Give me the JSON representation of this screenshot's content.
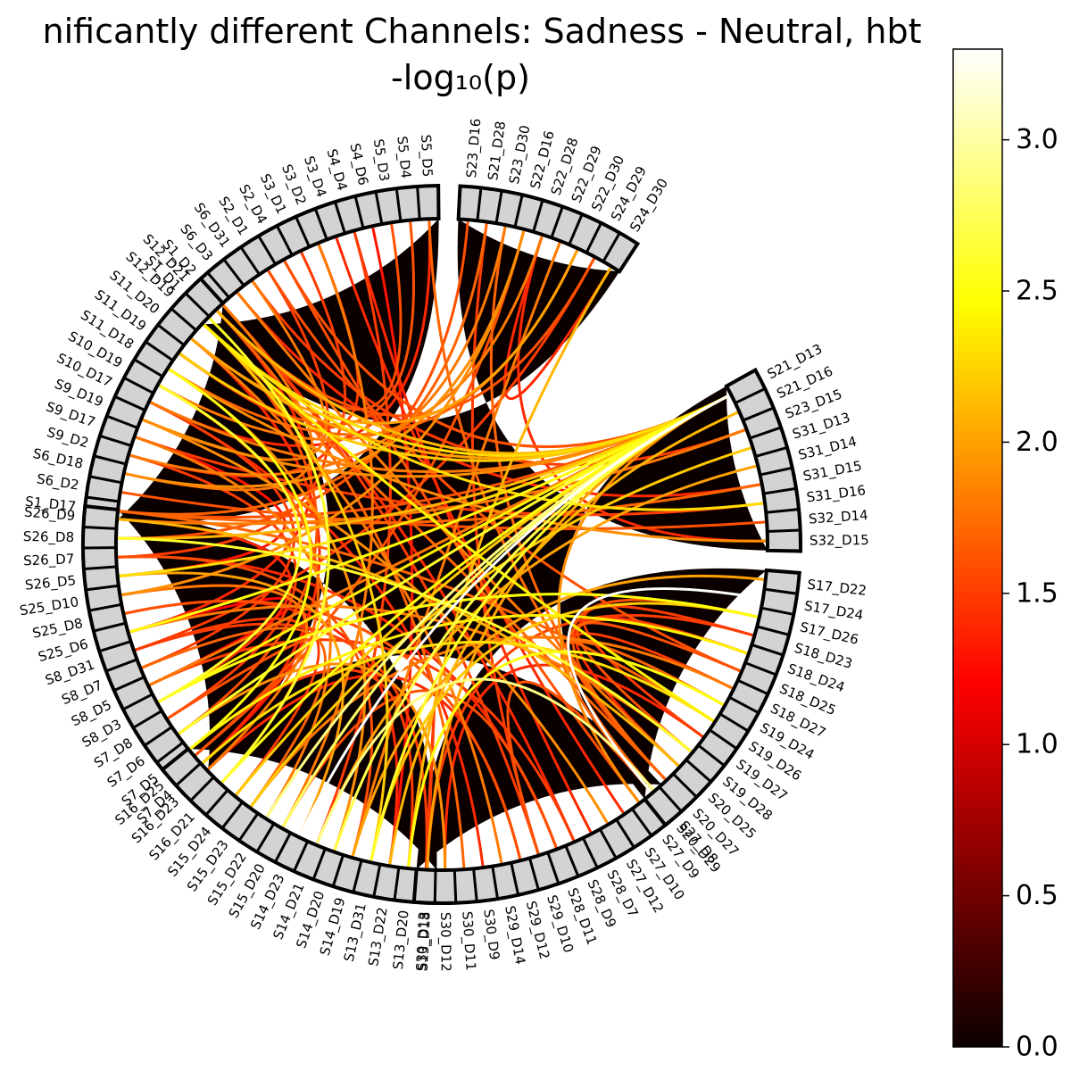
{
  "chart_data": {
    "type": "chord",
    "title": "nificantly different Channels: Sadness - Neutral, hbt",
    "subtitle": "-log₁₀(p)",
    "colormap": "hot",
    "colorbar": {
      "min": 0.0,
      "max": 3.3,
      "ticks": [
        "0.0",
        "0.5",
        "1.0",
        "1.5",
        "2.0",
        "2.5",
        "3.0"
      ]
    },
    "sector_color": "#d3d3d3",
    "background_color": "#0b0000",
    "channels": [
      "S1_D1",
      "S1_D2",
      "S6_D3",
      "S6_D31",
      "S2_D1",
      "S2_D4",
      "S3_D1",
      "S3_D2",
      "S3_D4",
      "S4_D4",
      "S4_D6",
      "S5_D3",
      "S5_D4",
      "S5_D5",
      "S1_D17",
      "S6_D2",
      "S6_D18",
      "S9_D2",
      "S9_D17",
      "S9_D19",
      "S10_D17",
      "S10_D19",
      "S11_D18",
      "S11_D19",
      "S11_D20",
      "S12_D19",
      "S12_D21",
      "S7_D4",
      "S7_D5",
      "S7_D6",
      "S7_D8",
      "S8_D3",
      "S8_D5",
      "S8_D7",
      "S8_D31",
      "S25_D6",
      "S25_D8",
      "S25_D10",
      "S26_D5",
      "S26_D7",
      "S26_D8",
      "S26_D9",
      "S13_D18",
      "S13_D20",
      "S13_D22",
      "S13_D31",
      "S14_D19",
      "S14_D20",
      "S14_D21",
      "S14_D23",
      "S15_D20",
      "S15_D22",
      "S15_D23",
      "S15_D24",
      "S16_D21",
      "S16_D23",
      "S16_D25",
      "S27_D8",
      "S27_D9",
      "S27_D10",
      "S27_D12",
      "S28_D7",
      "S28_D9",
      "S28_D11",
      "S29_D10",
      "S29_D12",
      "S29_D14",
      "S30_D9",
      "S30_D11",
      "S30_D12",
      "S30_D13",
      "S17_D22",
      "S17_D24",
      "S17_D26",
      "S18_D23",
      "S18_D24",
      "S18_D25",
      "S18_D27",
      "S19_D24",
      "S19_D26",
      "S19_D27",
      "S19_D28",
      "S20_D25",
      "S20_D27",
      "S20_D29",
      "S21_D13",
      "S21_D16",
      "S23_D15",
      "S31_D13",
      "S31_D14",
      "S31_D15",
      "S31_D16",
      "S32_D14",
      "S32_D15",
      "S23_D16",
      "S21_D28",
      "S23_D30",
      "S22_D16",
      "S22_D28",
      "S22_D29",
      "S22_D30",
      "S24_D29",
      "S24_D30"
    ],
    "groups": [
      {
        "channels": [
          "S1_D1",
          "S1_D2",
          "S6_D3",
          "S6_D31",
          "S2_D1",
          "S2_D4",
          "S3_D1",
          "S3_D2",
          "S3_D4",
          "S4_D4",
          "S4_D6",
          "S5_D3",
          "S5_D4",
          "S5_D5"
        ]
      },
      {
        "channels": [
          "S1_D17",
          "S6_D2",
          "S6_D18",
          "S9_D2",
          "S9_D17",
          "S9_D19",
          "S10_D17",
          "S10_D19",
          "S11_D18",
          "S11_D19",
          "S11_D20",
          "S12_D19",
          "S12_D21"
        ]
      },
      {
        "channels": [
          "S7_D4",
          "S7_D5",
          "S7_D6",
          "S7_D8",
          "S8_D3",
          "S8_D5",
          "S8_D7",
          "S8_D31",
          "S25_D6",
          "S25_D8",
          "S25_D10",
          "S26_D5",
          "S26_D7",
          "S26_D8",
          "S26_D9"
        ]
      },
      {
        "channels": [
          "S13_D18",
          "S13_D20",
          "S13_D22",
          "S13_D31",
          "S14_D19",
          "S14_D20",
          "S14_D21",
          "S14_D23",
          "S15_D20",
          "S15_D22",
          "S15_D23",
          "S15_D24",
          "S16_D21",
          "S16_D23",
          "S16_D25"
        ]
      },
      {
        "channels": [
          "S27_D8",
          "S27_D9",
          "S27_D10",
          "S27_D12",
          "S28_D7",
          "S28_D9",
          "S28_D11",
          "S29_D10",
          "S29_D12",
          "S29_D14",
          "S30_D9",
          "S30_D11",
          "S30_D12",
          "S30_D13"
        ]
      },
      {
        "channels": [
          "S17_D22",
          "S17_D24",
          "S17_D26",
          "S18_D23",
          "S18_D24",
          "S18_D25",
          "S18_D27",
          "S19_D24",
          "S19_D26",
          "S19_D27",
          "S19_D28",
          "S20_D25",
          "S20_D27",
          "S20_D29"
        ]
      },
      {
        "channels": [
          "S21_D13",
          "S21_D16",
          "S23_D15",
          "S31_D13",
          "S31_D14",
          "S31_D15",
          "S31_D16",
          "S32_D14",
          "S32_D15"
        ]
      },
      {
        "channels": [
          "S23_D16",
          "S21_D28",
          "S23_D30",
          "S22_D16",
          "S22_D28",
          "S22_D29",
          "S22_D30",
          "S24_D29",
          "S24_D30"
        ]
      }
    ],
    "links": [
      [
        "S21_D13",
        "S11_D19",
        2.2
      ],
      [
        "S21_D13",
        "S12_D19",
        2.3
      ],
      [
        "S21_D13",
        "S12_D21",
        2.1
      ],
      [
        "S21_D13",
        "S11_D20",
        2.0
      ],
      [
        "S21_D13",
        "S9_D19",
        1.9
      ],
      [
        "S21_D13",
        "S10_D17",
        1.8
      ],
      [
        "S21_D13",
        "S7_D6",
        2.6
      ],
      [
        "S21_D13",
        "S8_D3",
        2.4
      ],
      [
        "S21_D13",
        "S25_D6",
        2.5
      ],
      [
        "S21_D13",
        "S26_D5",
        2.3
      ],
      [
        "S21_D13",
        "S13_D31",
        2.6
      ],
      [
        "S21_D13",
        "S14_D20",
        2.7
      ],
      [
        "S21_D13",
        "S14_D23",
        3.3
      ],
      [
        "S21_D13",
        "S15_D20",
        2.8
      ],
      [
        "S21_D13",
        "S15_D22",
        2.9
      ],
      [
        "S21_D13",
        "S15_D24",
        2.2
      ],
      [
        "S21_D13",
        "S16_D21",
        2.5
      ],
      [
        "S21_D13",
        "S13_D18",
        2.0
      ],
      [
        "S21_D13",
        "S8_D5",
        1.8
      ],
      [
        "S21_D13",
        "S27_D9",
        1.9
      ],
      [
        "S21_D13",
        "S26_D8",
        2.1
      ],
      [
        "S21_D13",
        "S1_D17",
        1.6
      ],
      [
        "S17_D24",
        "S20_D29",
        3.3
      ],
      [
        "S17_D26",
        "S20_D27",
        1.6
      ],
      [
        "S18_D23",
        "S19_D27",
        1.5
      ],
      [
        "S18_D24",
        "S20_D25",
        1.4
      ],
      [
        "S18_D25",
        "S19_D28",
        1.6
      ],
      [
        "S18_D27",
        "S20_D27",
        1.5
      ],
      [
        "S19_D24",
        "S20_D29",
        1.7
      ],
      [
        "S19_D26",
        "S12_D19",
        2.4
      ],
      [
        "S19_D26",
        "S7_D4",
        2.3
      ],
      [
        "S19_D24",
        "S13_D20",
        2.5
      ],
      [
        "S19_D26",
        "S1_D17",
        1.7
      ],
      [
        "S18_D25",
        "S2_D1",
        1.6
      ],
      [
        "S20_D25",
        "S6_D3",
        1.8
      ],
      [
        "S20_D27",
        "S12_D19",
        1.7
      ],
      [
        "S17_D22",
        "S14_D19",
        2.0
      ],
      [
        "S18_D27",
        "S15_D23",
        1.8
      ],
      [
        "S19_D28",
        "S25_D6",
        1.8
      ],
      [
        "S20_D25",
        "S26_D9",
        2.1
      ],
      [
        "S17_D26",
        "S13_D31",
        2.2
      ],
      [
        "S18_D23",
        "S13_D18",
        1.5
      ],
      [
        "S19_D27",
        "S30_D12",
        1.4
      ],
      [
        "S20_D29",
        "S29_D10",
        1.6
      ],
      [
        "S18_D24",
        "S27_D8",
        1.7
      ],
      [
        "S11_D18",
        "S7_D5",
        2.5
      ],
      [
        "S10_D19",
        "S8_D3",
        2.6
      ],
      [
        "S9_D2",
        "S7_D8",
        1.5
      ],
      [
        "S12_D21",
        "S25_D6",
        1.4
      ],
      [
        "S11_D20",
        "S7_D4",
        1.4
      ],
      [
        "S9_D17",
        "S26_D5",
        1.3
      ],
      [
        "S10_D17",
        "S8_D7",
        1.5
      ],
      [
        "S12_D19",
        "S7_D6",
        1.6
      ],
      [
        "S1_D2",
        "S6_D18",
        1.8
      ],
      [
        "S3_D2",
        "S15_D20",
        1.8
      ],
      [
        "S4_D4",
        "S14_D21",
        1.5
      ],
      [
        "S5_D5",
        "S20_D27",
        1.7
      ],
      [
        "S2_D4",
        "S21_D13",
        1.6
      ],
      [
        "S6_D31",
        "S23_D15",
        1.5
      ],
      [
        "S1_D1",
        "S16_D21",
        2.6
      ],
      [
        "S3_D4",
        "S27_D10",
        1.4
      ],
      [
        "S4_D6",
        "S13_D22",
        1.3
      ],
      [
        "S2_D1",
        "S26_D7",
        1.5
      ],
      [
        "S5_D3",
        "S12_D21",
        1.6
      ],
      [
        "S6_D3",
        "S31_D15",
        1.4
      ],
      [
        "S3_D1",
        "S9_D2",
        1.5
      ],
      [
        "S5_D4",
        "S11_D19",
        1.6
      ],
      [
        "S1_D2",
        "S28_D9",
        1.4
      ],
      [
        "S24_D30",
        "S22_D28",
        1.4
      ],
      [
        "S24_D29",
        "S8_D31",
        1.5
      ],
      [
        "S22_D29",
        "S14_D19",
        1.8
      ],
      [
        "S22_D16",
        "S25_D10",
        1.9
      ],
      [
        "S23_D16",
        "S26_D8",
        1.6
      ],
      [
        "S21_D28",
        "S29_D10",
        1.5
      ],
      [
        "S23_D30",
        "S20_D27",
        1.7
      ],
      [
        "S22_D30",
        "S11_D18",
        1.7
      ],
      [
        "S22_D28",
        "S10_D19",
        1.8
      ],
      [
        "S24_D30",
        "S13_D20",
        2.1
      ],
      [
        "S22_D16",
        "S16_D25",
        1.6
      ],
      [
        "S32_D15",
        "S11_D18",
        1.9
      ],
      [
        "S32_D14",
        "S6_D2",
        1.6
      ],
      [
        "S31_D16",
        "S9_D17",
        1.5
      ],
      [
        "S31_D15",
        "S1_D17",
        1.7
      ],
      [
        "S31_D14",
        "S14_D21",
        2.0
      ],
      [
        "S31_D13",
        "S15_D23",
        2.2
      ],
      [
        "S23_D15",
        "S26_D9",
        1.8
      ],
      [
        "S21_D16",
        "S13_D22",
        2.1
      ],
      [
        "S32_D15",
        "S22_D28",
        1.4
      ],
      [
        "S31_D16",
        "S12_D19",
        2.3
      ],
      [
        "S30_D13",
        "S8_D31",
        1.5
      ],
      [
        "S30_D12",
        "S7_D6",
        1.9
      ],
      [
        "S30_D11",
        "S12_D21",
        1.7
      ],
      [
        "S29_D14",
        "S11_D20",
        1.8
      ],
      [
        "S29_D12",
        "S25_D8",
        1.6
      ],
      [
        "S28_D11",
        "S26_D7",
        1.4
      ],
      [
        "S28_D9",
        "S8_D5",
        1.5
      ],
      [
        "S27_D12",
        "S9_D19",
        1.9
      ],
      [
        "S30_D9",
        "S10_D17",
        1.4
      ],
      [
        "S29_D10",
        "S1_D2",
        1.5
      ],
      [
        "S27_D9",
        "S2_D4",
        1.6
      ],
      [
        "S28_D7",
        "S4_D4",
        1.4
      ],
      [
        "S13_D22",
        "S25_D8",
        1.4
      ],
      [
        "S14_D19",
        "S26_D7",
        1.6
      ],
      [
        "S13_D20",
        "S7_D5",
        1.5
      ],
      [
        "S15_D23",
        "S8_D7",
        1.7
      ],
      [
        "S16_D23",
        "S25_D10",
        1.8
      ],
      [
        "S14_D23",
        "S26_D5",
        2.0
      ],
      [
        "S15_D24",
        "S8_D31",
        1.5
      ],
      [
        "S16_D25",
        "S7_D8",
        1.6
      ],
      [
        "S13_D31",
        "S12_D19",
        2.2
      ],
      [
        "S14_D20",
        "S11_D18",
        1.9
      ],
      [
        "S15_D22",
        "S9_D17",
        1.8
      ],
      [
        "S16_D21",
        "S10_D19",
        1.7
      ],
      [
        "S13_D18",
        "S30_D13",
        1.5
      ],
      [
        "S14_D21",
        "S27_D8",
        2.9
      ],
      [
        "S15_D20",
        "S28_D11",
        1.6
      ],
      [
        "S16_D23",
        "S29_D12",
        1.4
      ],
      [
        "S25_D10",
        "S7_D4",
        1.3
      ],
      [
        "S26_D9",
        "S8_D3",
        1.4
      ],
      [
        "S25_D6",
        "S8_D5",
        1.2
      ],
      [
        "S9_D19",
        "S6_D31",
        1.8
      ],
      [
        "S11_D19",
        "S3_D2",
        1.5
      ],
      [
        "S10_D17",
        "S5_D5",
        1.4
      ],
      [
        "S12_D21",
        "S24_D29",
        1.6
      ],
      [
        "S6_D18",
        "S22_D16",
        1.9
      ],
      [
        "S9_D2",
        "S23_D30",
        1.8
      ],
      [
        "S1_D17",
        "S21_D28",
        1.7
      ],
      [
        "S11_D20",
        "S22_D30",
        2.0
      ],
      [
        "S12_D19",
        "S19_D26",
        2.3
      ],
      [
        "S7_D5",
        "S18_D24",
        2.4
      ],
      [
        "S8_D3",
        "S17_D26",
        2.5
      ],
      [
        "S26_D8",
        "S19_D28",
        2.6
      ]
    ]
  }
}
